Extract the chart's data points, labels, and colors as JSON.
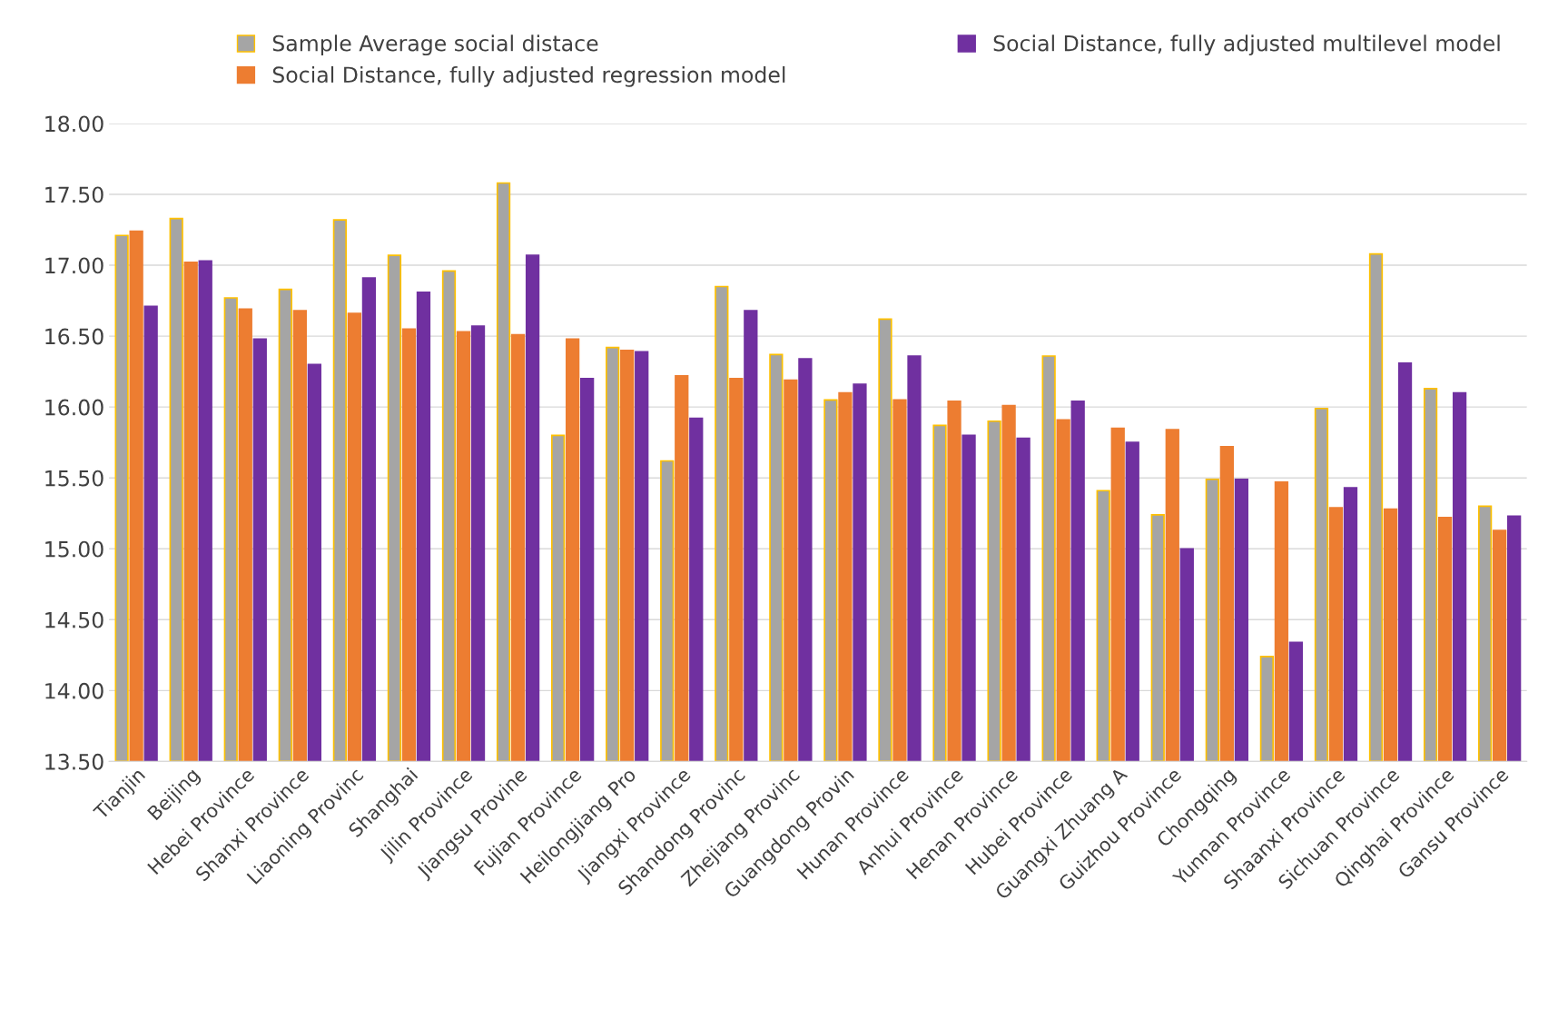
{
  "chart_data": {
    "type": "bar",
    "legend": "top",
    "grid": "y",
    "categories": [
      "Tianjin",
      "Beijing",
      "Hebei Province",
      "Shanxi Province",
      "Liaoning Provinc",
      "Shanghai",
      "Jilin Province",
      "Jiangsu Provine",
      "Fujian Province",
      "Heilongjiang Pro",
      "Jiangxi Province",
      "Shandong Provinc",
      "Zhejiang Provinc",
      "Guangdong Provin",
      "Hunan Province",
      "Anhui Province",
      "Henan Province",
      "Hubei Province",
      "Guangxi Zhuang A",
      "Guizhou Province",
      "Chongqing",
      "Yunnan Province",
      "Shaanxi Province",
      "Sichuan Province",
      "Qinghai Province",
      "Gansu Province"
    ],
    "series": [
      {
        "name": "Sample Average social distace",
        "color": "#a5a5a5",
        "values": [
          17.21,
          17.33,
          16.77,
          16.83,
          17.32,
          17.07,
          16.96,
          17.58,
          15.8,
          16.42,
          15.62,
          16.85,
          16.37,
          16.05,
          16.62,
          15.87,
          15.9,
          16.36,
          15.41,
          15.24,
          15.49,
          14.24,
          15.99,
          17.08,
          16.13,
          15.3
        ]
      },
      {
        "name": "Social Distance, fully adjusted regression model",
        "color": "#ed7d31",
        "values": [
          17.24,
          17.02,
          16.69,
          16.68,
          16.66,
          16.55,
          16.53,
          16.51,
          16.48,
          16.4,
          16.22,
          16.2,
          16.19,
          16.1,
          16.05,
          16.04,
          16.01,
          15.91,
          15.85,
          15.84,
          15.72,
          15.47,
          15.29,
          15.28,
          15.22,
          15.13
        ]
      },
      {
        "name": "Social Distance, fully adjusted multilevel model",
        "color": "#7030a0",
        "values": [
          16.71,
          17.03,
          16.48,
          16.3,
          16.91,
          16.81,
          16.57,
          17.07,
          16.2,
          16.39,
          15.92,
          16.68,
          16.34,
          16.16,
          16.36,
          15.8,
          15.78,
          16.04,
          15.75,
          15.0,
          15.49,
          14.34,
          15.43,
          16.31,
          16.1,
          15.23
        ]
      }
    ],
    "ylim": [
      13.5,
      18.0
    ],
    "yticks": [
      {
        "value": 13.5,
        "label": "13.50"
      },
      {
        "value": 14.0,
        "label": "14.00"
      },
      {
        "value": 14.5,
        "label": "14.50"
      },
      {
        "value": 15.0,
        "label": "15.00"
      },
      {
        "value": 15.5,
        "label": "15.50"
      },
      {
        "value": 16.0,
        "label": "16.00"
      },
      {
        "value": 16.5,
        "label": "16.50"
      },
      {
        "value": 17.0,
        "label": "17.00"
      },
      {
        "value": 17.5,
        "label": "17.50"
      },
      {
        "value": 18.0,
        "label": "18.00"
      }
    ]
  }
}
